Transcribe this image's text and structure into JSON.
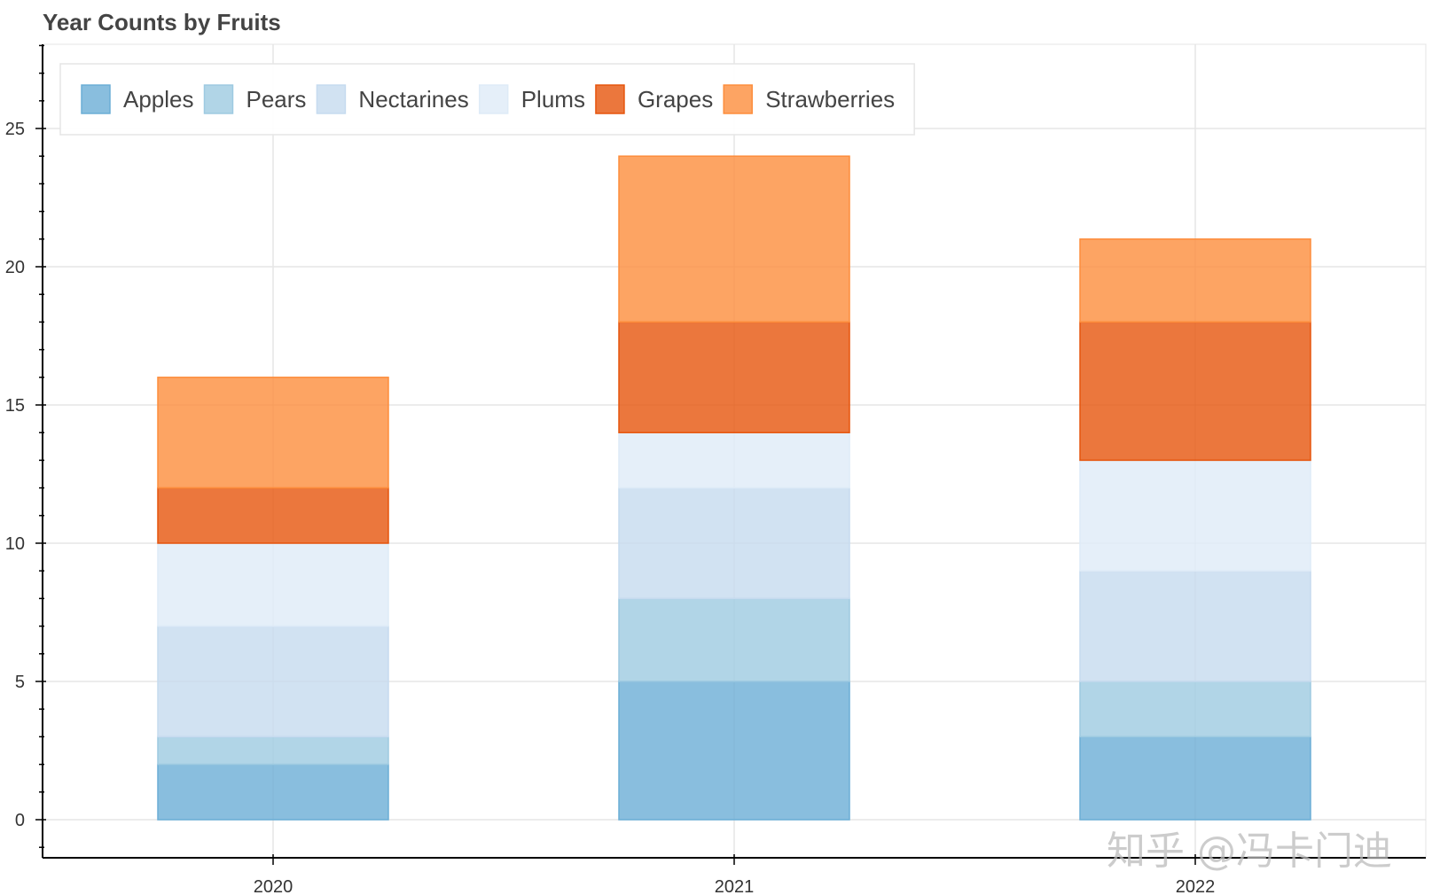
{
  "chart_data": {
    "type": "bar",
    "stacked": true,
    "title": "Year Counts by Fruits",
    "xlabel": "",
    "ylabel": "",
    "categories": [
      "2020",
      "2021",
      "2022"
    ],
    "ylim": [
      -1.3,
      28
    ],
    "yticks": [
      0,
      5,
      10,
      15,
      20,
      25
    ],
    "grid": true,
    "legend_position": "top-left",
    "series": [
      {
        "name": "Apples",
        "color": "#6baed6",
        "values": [
          2,
          5,
          3
        ]
      },
      {
        "name": "Pears",
        "color": "#9ecae1",
        "values": [
          1,
          3,
          2
        ]
      },
      {
        "name": "Nectarines",
        "color": "#c6dbef",
        "values": [
          4,
          4,
          4
        ]
      },
      {
        "name": "Plums",
        "color": "#deebf7",
        "values": [
          3,
          2,
          4
        ]
      },
      {
        "name": "Grapes",
        "color": "#e6550d",
        "values": [
          2,
          4,
          5
        ]
      },
      {
        "name": "Strawberries",
        "color": "#fd8d3c",
        "values": [
          4,
          6,
          3
        ]
      }
    ]
  },
  "watermark": "知乎 @冯卡门迪"
}
